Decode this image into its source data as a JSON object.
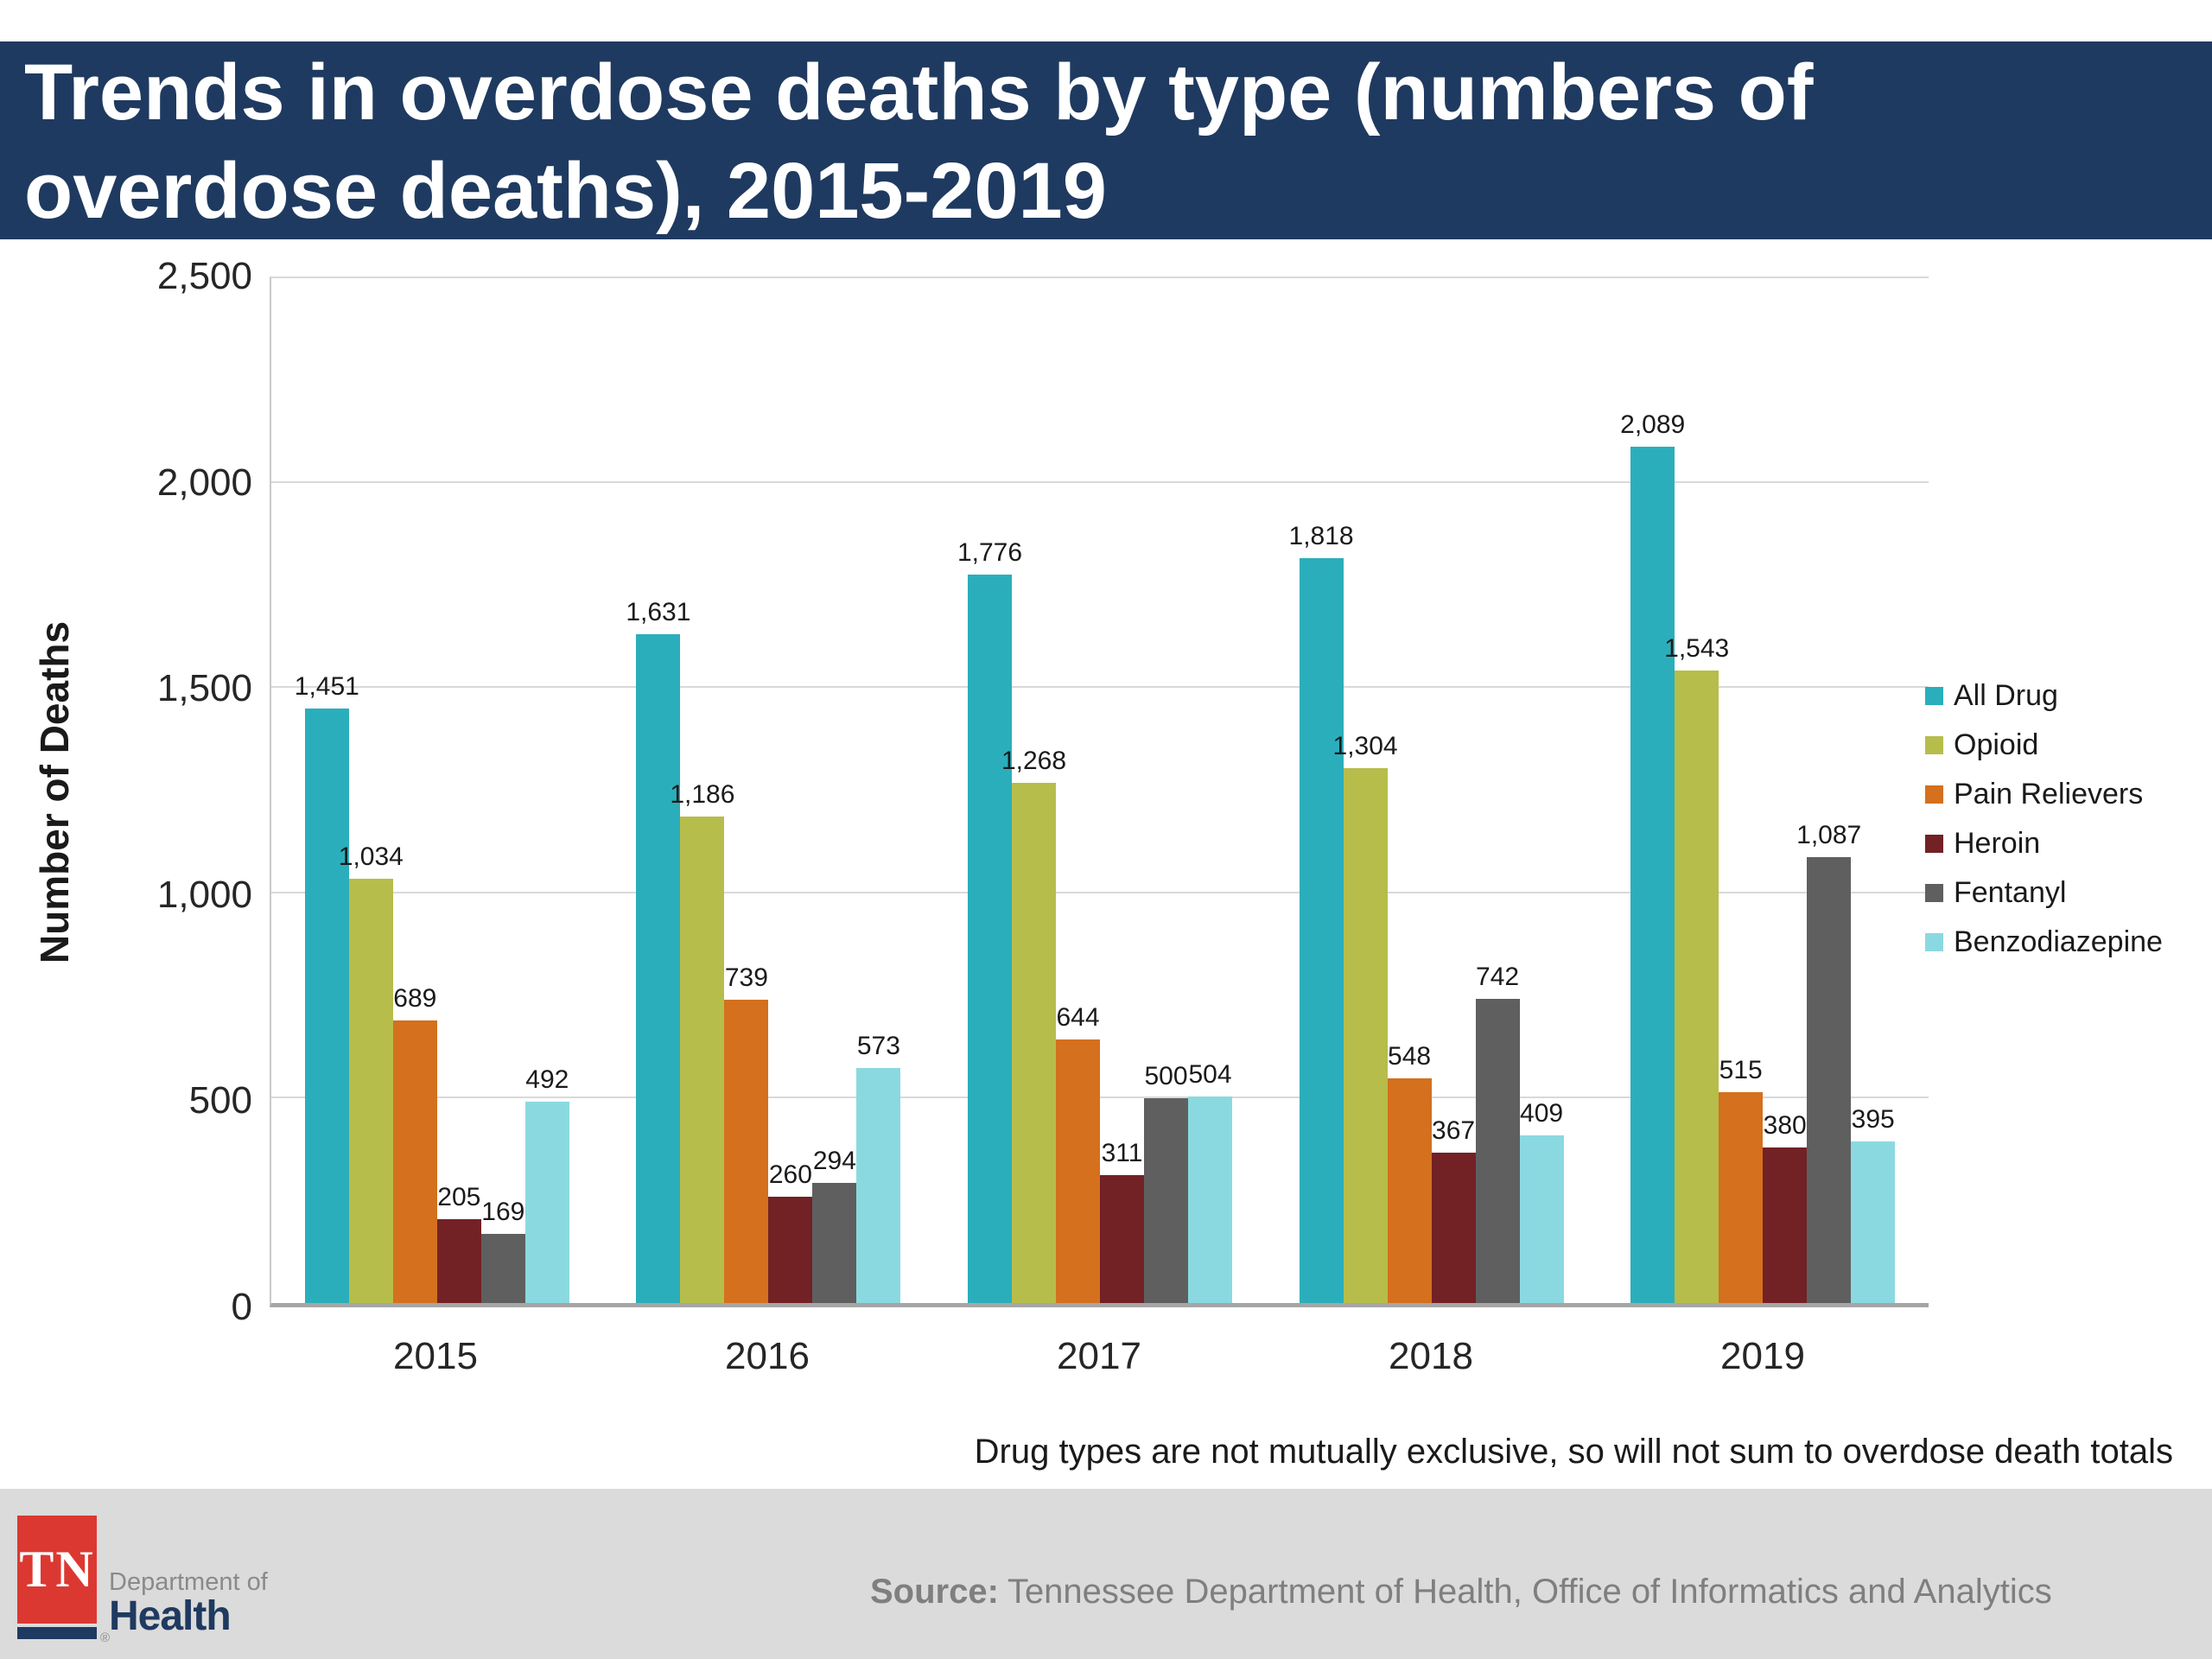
{
  "header": {
    "title_line1": "Trends in overdose deaths by type (numbers of",
    "title_line2": "overdose deaths), 2015-2019"
  },
  "chart_data": {
    "type": "bar",
    "title": "Trends in overdose deaths by type (numbers of overdose deaths), 2015-2019",
    "xlabel": "",
    "ylabel": "Number of Deaths",
    "ylim": [
      0,
      2500
    ],
    "ytick_interval": 500,
    "grid": true,
    "legend_position": "right",
    "categories": [
      "2015",
      "2016",
      "2017",
      "2018",
      "2019"
    ],
    "series": [
      {
        "name": "All Drug",
        "color": "#2BAEBB",
        "values": [
          1451,
          1631,
          1776,
          1818,
          2089
        ]
      },
      {
        "name": "Opioid",
        "color": "#B6BD4B",
        "values": [
          1034,
          1186,
          1268,
          1304,
          1543
        ]
      },
      {
        "name": "Pain Relievers",
        "color": "#D4701E",
        "values": [
          689,
          739,
          644,
          548,
          515
        ]
      },
      {
        "name": "Heroin",
        "color": "#722125",
        "values": [
          205,
          260,
          311,
          367,
          380
        ]
      },
      {
        "name": "Fentanyl",
        "color": "#5F5F5F",
        "values": [
          169,
          294,
          500,
          742,
          1087
        ]
      },
      {
        "name": "Benzodiazepine",
        "color": "#8BD9E0",
        "values": [
          492,
          573,
          504,
          409,
          395
        ]
      }
    ]
  },
  "footnote": "Drug types are not mutually exclusive, so will not sum to overdose death totals",
  "footer": {
    "logo_tn": "TN",
    "logo_dept": "Department of",
    "logo_health": "Health",
    "registered_mark": "®",
    "source_label": "Source:",
    "source_text": "Tennessee Department of Health, Office of Informatics and Analytics"
  },
  "colors": {
    "header_bg": "#1F3A60",
    "navy": "#1F3A60",
    "footer_bg": "#DBDBDB",
    "tn_red": "#DC3832",
    "source_gray": "#7F7F7F",
    "gridline": "#D9D9D9",
    "axis_line": "#A6A6A6"
  }
}
